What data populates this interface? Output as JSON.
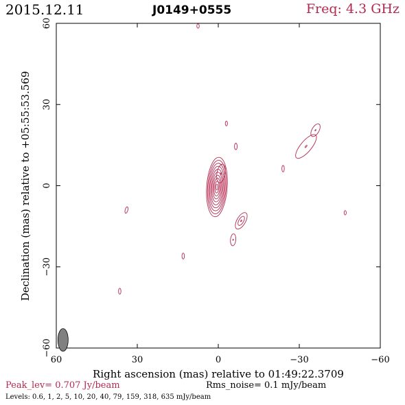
{
  "header": {
    "date": "2015.12.11",
    "source": "J0149+0555",
    "freq": "Freq: 4.3 GHz"
  },
  "footer": {
    "peak": "Peak_lev=  0.707 Jy/beam",
    "rms": "Rms_noise=  0.1 mJy/beam",
    "levels": "Levels: 0.6,   1,   2,   5,  10,  20,  40,  79, 159, 318, 635 mJy/beam"
  },
  "colors": {
    "contour": "#b5284f",
    "axes": "#000000",
    "beam": "#808080"
  },
  "chart_data": {
    "type": "contour",
    "xlabel": "Right ascension (mas) relative to 01:49:22.3709",
    "ylabel": "Declination (mas) relative to +05:55:53.569",
    "xlim": [
      60,
      -60
    ],
    "ylim": [
      -60,
      60
    ],
    "xticks": [
      60,
      30,
      0,
      -30,
      -60
    ],
    "yticks": [
      60,
      30,
      0,
      -30,
      -60
    ],
    "xtick_labels": [
      "60",
      "30",
      "0",
      "−30",
      "−60"
    ],
    "ytick_labels": [
      "60",
      "30",
      "0",
      "−30",
      "−60"
    ],
    "peak_jy_per_beam": 0.707,
    "rms_mjy_per_beam": 0.1,
    "levels_mjy_per_beam": [
      0.6,
      1,
      2,
      5,
      10,
      20,
      40,
      79,
      159,
      318,
      635
    ],
    "beam": {
      "ra": 57.5,
      "dec": -57,
      "major_mas": 4.2,
      "minor_mas": 1.9
    },
    "components": [
      {
        "ra": 0.5,
        "dec": -0.5,
        "major_mas": 11,
        "minor_mas": 3.8,
        "pa_deg": 4,
        "levels": 10
      },
      {
        "ra": -1,
        "dec": 4.5,
        "major_mas": 3.5,
        "minor_mas": 1.5,
        "pa_deg": 10,
        "levels": 2
      },
      {
        "ra": -8.5,
        "dec": -13,
        "major_mas": 3.4,
        "minor_mas": 1.6,
        "pa_deg": 30,
        "levels": 3
      },
      {
        "ra": -5.5,
        "dec": -20,
        "major_mas": 2.2,
        "minor_mas": 1,
        "pa_deg": 5,
        "levels": 2
      },
      {
        "ra": -32.5,
        "dec": 14.5,
        "major_mas": 5.5,
        "minor_mas": 2,
        "pa_deg": 40,
        "levels": 2
      },
      {
        "ra": -36,
        "dec": 20.5,
        "major_mas": 2.6,
        "minor_mas": 1.3,
        "pa_deg": 30,
        "levels": 2
      },
      {
        "ra": 7.5,
        "dec": 59,
        "major_mas": 0.8,
        "minor_mas": 0.45,
        "pa_deg": 0,
        "levels": 1
      },
      {
        "ra": -3,
        "dec": 23,
        "major_mas": 0.9,
        "minor_mas": 0.4,
        "pa_deg": 0,
        "levels": 1
      },
      {
        "ra": -6.5,
        "dec": 14.5,
        "major_mas": 1.2,
        "minor_mas": 0.5,
        "pa_deg": 0,
        "levels": 1
      },
      {
        "ra": -24,
        "dec": 6.3,
        "major_mas": 1.2,
        "minor_mas": 0.45,
        "pa_deg": 0,
        "levels": 1
      },
      {
        "ra": 34,
        "dec": -9,
        "major_mas": 1.2,
        "minor_mas": 0.5,
        "pa_deg": 15,
        "levels": 1
      },
      {
        "ra": 13,
        "dec": -26,
        "major_mas": 1.1,
        "minor_mas": 0.45,
        "pa_deg": 0,
        "levels": 1
      },
      {
        "ra": 36.5,
        "dec": -39,
        "major_mas": 1.1,
        "minor_mas": 0.45,
        "pa_deg": 0,
        "levels": 1
      },
      {
        "ra": -47,
        "dec": -10,
        "major_mas": 0.8,
        "minor_mas": 0.4,
        "pa_deg": 0,
        "levels": 1
      }
    ]
  }
}
